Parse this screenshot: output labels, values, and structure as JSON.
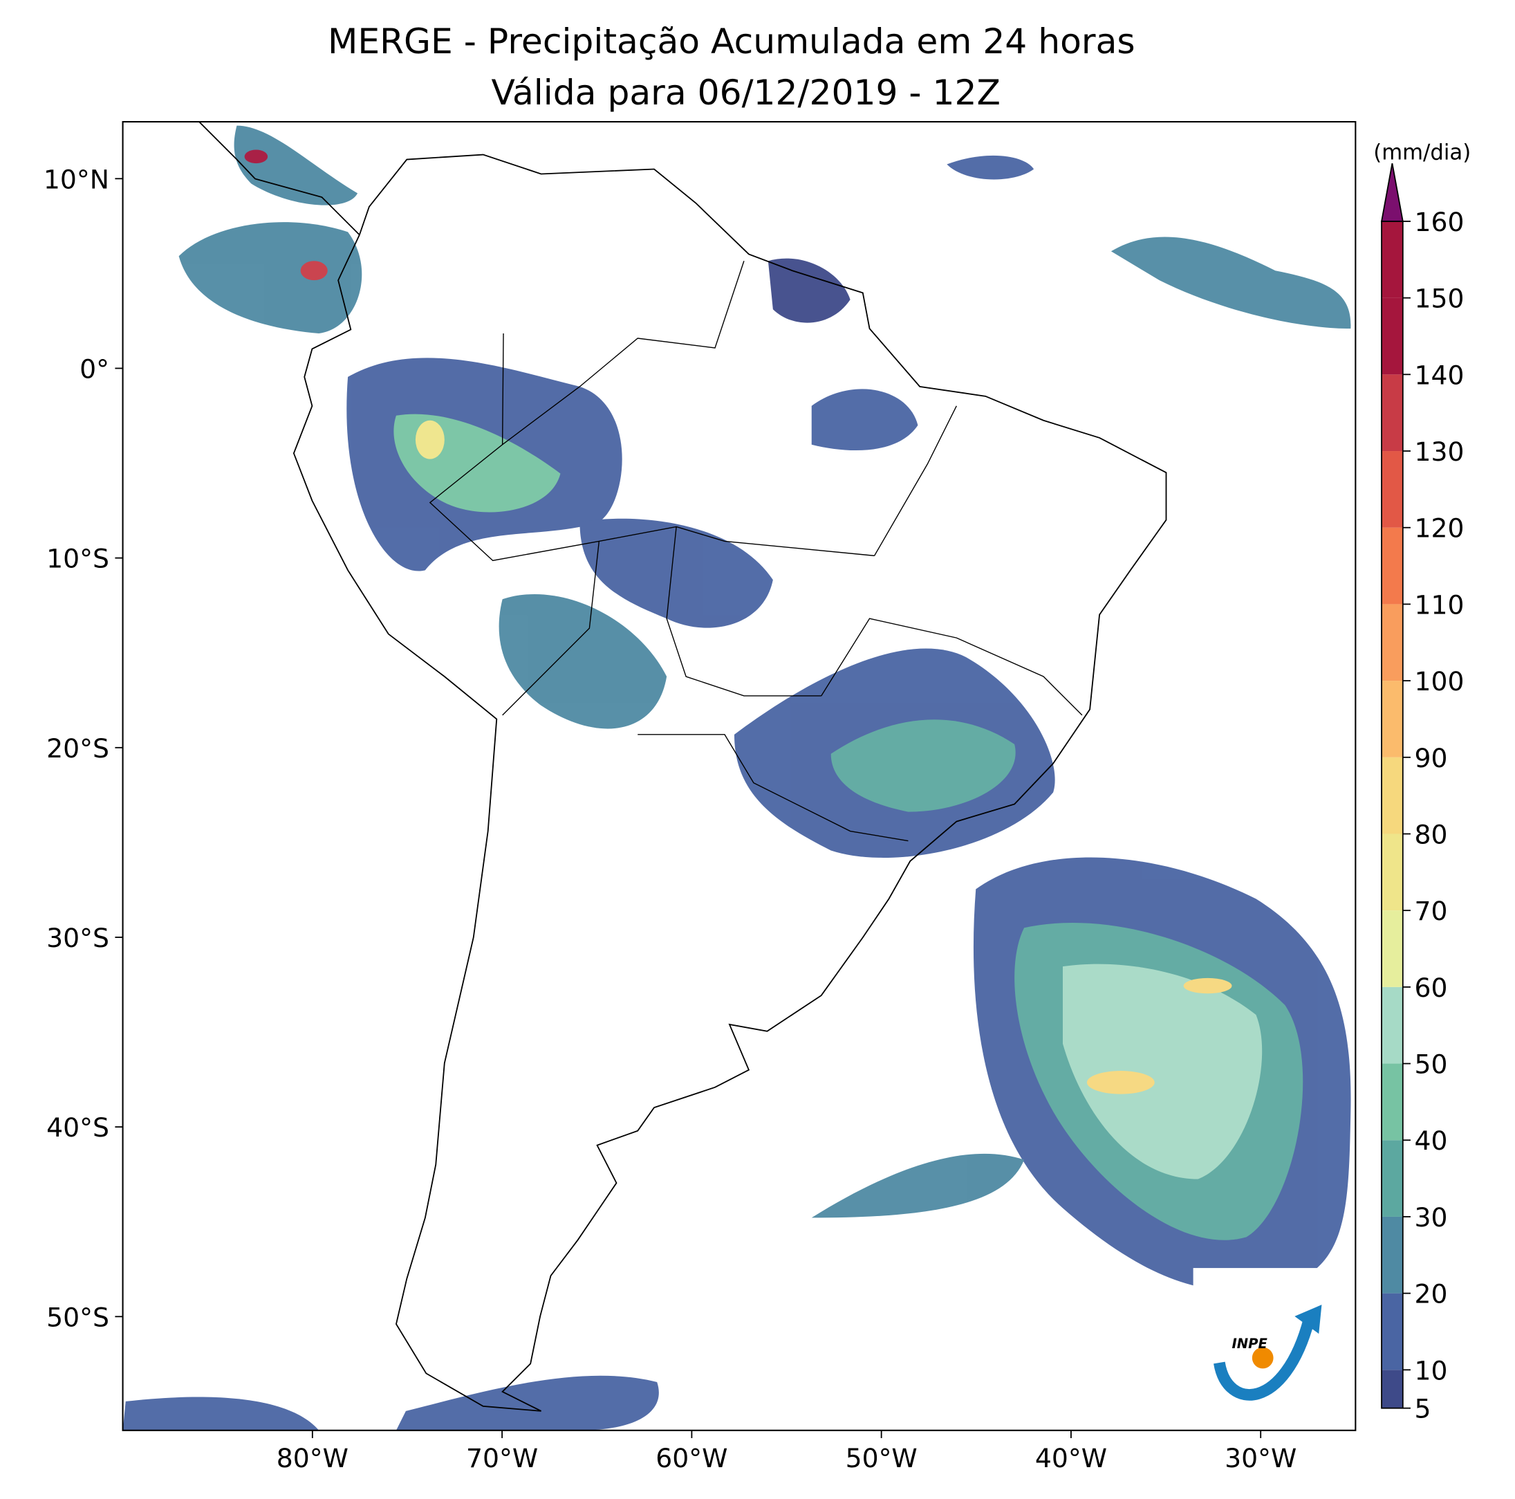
{
  "title": [
    "MERGE - Precipitação Acumulada em 24 horas",
    "Válida para 06/12/2019 - 12Z"
  ],
  "map": {
    "xlim": [
      -90,
      -25
    ],
    "ylim": [
      -56,
      13
    ],
    "xticks": [
      {
        "value": -80,
        "label": "80°W"
      },
      {
        "value": -70,
        "label": "70°W"
      },
      {
        "value": -60,
        "label": "60°W"
      },
      {
        "value": -50,
        "label": "50°W"
      },
      {
        "value": -40,
        "label": "40°W"
      },
      {
        "value": -30,
        "label": "30°W"
      }
    ],
    "yticks": [
      {
        "value": 10,
        "label": "10°N"
      },
      {
        "value": 0,
        "label": "0°"
      },
      {
        "value": -10,
        "label": "10°S"
      },
      {
        "value": -20,
        "label": "20°S"
      },
      {
        "value": -30,
        "label": "30°S"
      },
      {
        "value": -40,
        "label": "40°S"
      },
      {
        "value": -50,
        "label": "50°S"
      }
    ]
  },
  "colorbar": {
    "label": "(mm/dia)",
    "lim": [
      5,
      160
    ],
    "ticks": [
      5,
      10,
      20,
      30,
      40,
      50,
      60,
      70,
      80,
      90,
      100,
      110,
      120,
      130,
      140,
      150,
      160
    ],
    "colors": [
      "#3e4a89",
      "#4a65a3",
      "#4f8aa3",
      "#5ca8a0",
      "#77c3a3",
      "#a6dac6",
      "#e6ee9d",
      "#efe58a",
      "#f6d87d",
      "#fbbb6c",
      "#f99d5d",
      "#f37a4c",
      "#e25846",
      "#c83b46",
      "#a5163d",
      "#a5163d"
    ],
    "extend_color": "#7b0f6e"
  },
  "logo_text": "INPE"
}
